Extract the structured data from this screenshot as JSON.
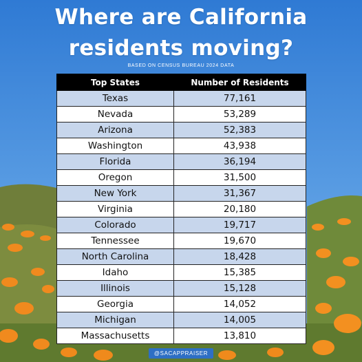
{
  "heading": {
    "line1": "Where are California",
    "line2": "residents moving?",
    "subtitle": "BASED ON CENSUS BUREAU 2024 DATA"
  },
  "chart_data": {
    "type": "table",
    "columns": [
      "Top States",
      "Number of Residents"
    ],
    "rows": [
      {
        "state": "Texas",
        "residents": "77,161"
      },
      {
        "state": "Nevada",
        "residents": "53,289"
      },
      {
        "state": "Arizona",
        "residents": "52,383"
      },
      {
        "state": "Washington",
        "residents": "43,938"
      },
      {
        "state": "Florida",
        "residents": "36,194"
      },
      {
        "state": "Oregon",
        "residents": "31,500"
      },
      {
        "state": "New York",
        "residents": "31,367"
      },
      {
        "state": "Virginia",
        "residents": "20,180"
      },
      {
        "state": "Colorado",
        "residents": "19,717"
      },
      {
        "state": "Tennessee",
        "residents": "19,670"
      },
      {
        "state": "North Carolina",
        "residents": "18,428"
      },
      {
        "state": "Idaho",
        "residents": "15,385"
      },
      {
        "state": "Illinois",
        "residents": "15,128"
      },
      {
        "state": "Georgia",
        "residents": "14,052"
      },
      {
        "state": "Michigan",
        "residents": "14,005"
      },
      {
        "state": "Massachusetts",
        "residents": "13,810"
      }
    ]
  },
  "credit": "@SACAPPRAISER",
  "colors": {
    "sky": "#3a86d8",
    "header_bg": "#000000",
    "row_alt": "#c7d6ec",
    "poppy": "#f08a1e",
    "hill": "#6f8a3a"
  }
}
